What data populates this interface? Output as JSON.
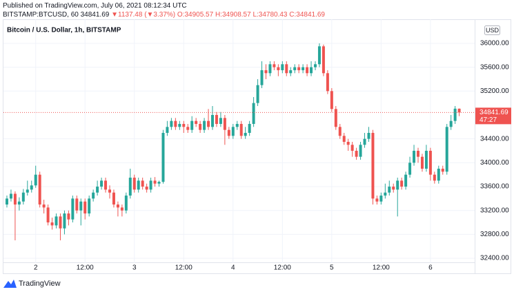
{
  "header": {
    "published": "Published on TradingView.com, July 06, 2021 08:12:34 UTC",
    "symbol": "BITSTAMP:BTCUSD, 60",
    "change": "▼1137.48 (▼3.37%)",
    "ohlc": "O:34905.57 H:34908.57 L:34780.43 C:34841.69"
  },
  "chart_data": {
    "type": "candlestick",
    "title": "Bitcoin / U.S. Dollar, 1h, BITSTAMP",
    "currency": "USD",
    "countdown": "47:27",
    "up_color": "#26a69a",
    "down_color": "#ef5350",
    "grid": true,
    "ylim": [
      32320,
      36380
    ],
    "yticks": [
      {
        "value": 36000,
        "label": "36000.00"
      },
      {
        "value": 35600,
        "label": "35600.00"
      },
      {
        "value": 35200,
        "label": "35200.00"
      },
      {
        "value": 34400,
        "label": "34400.00"
      },
      {
        "value": 34000,
        "label": "34000.00"
      },
      {
        "value": 33600,
        "label": "33600.00"
      },
      {
        "value": 33200,
        "label": "33200.00"
      },
      {
        "value": 32800,
        "label": "32800.00"
      },
      {
        "value": 32400,
        "label": "32400.00"
      }
    ],
    "xticks": [
      {
        "value": 7,
        "label": "2"
      },
      {
        "value": 19,
        "label": "12:00"
      },
      {
        "value": 31,
        "label": "3"
      },
      {
        "value": 43,
        "label": "12:00"
      },
      {
        "value": 55,
        "label": "4"
      },
      {
        "value": 67,
        "label": "12:00"
      },
      {
        "value": 79,
        "label": "5"
      },
      {
        "value": 91,
        "label": "12:00"
      },
      {
        "value": 103,
        "label": "6"
      }
    ],
    "open": [
      33300,
      33400,
      33480,
      33300,
      33350,
      33500,
      33550,
      33620,
      33800,
      33300,
      33250,
      33000,
      32950,
      33100,
      32900,
      33150,
      33050,
      33400,
      33200,
      33350,
      33150,
      33400,
      33500,
      33600,
      33700,
      33550,
      33500,
      33300,
      33250,
      33200,
      33450,
      33750,
      33550,
      33700,
      33600,
      33550,
      33700,
      33650,
      33680,
      34500,
      34600,
      34700,
      34600,
      34650,
      34600,
      34550,
      34700,
      34650,
      34550,
      34700,
      34600,
      34800,
      34650,
      34750,
      34550,
      34450,
      34600,
      34650,
      34450,
      34500,
      34650,
      35000,
      35300,
      35550,
      35500,
      35650,
      35600,
      35550,
      35650,
      35500,
      35550,
      35600,
      35550,
      35600,
      35500,
      35600,
      35650,
      35950,
      35500,
      35200,
      34900,
      34600,
      34450,
      34350,
      34300,
      34200,
      34100,
      34300,
      34400,
      34500,
      33400,
      33350,
      33450,
      33500,
      33600,
      33550,
      33700,
      33600,
      33800,
      34000,
      34200,
      34100,
      33900,
      34200,
      33800,
      33700,
      33900,
      33850,
      34600,
      34700,
      34905.57
    ],
    "high": [
      33450,
      33550,
      33520,
      33420,
      33560,
      33700,
      33700,
      33950,
      33850,
      33380,
      33300,
      33080,
      33150,
      33150,
      33200,
      33200,
      33450,
      33450,
      33400,
      33400,
      33450,
      33550,
      33700,
      33750,
      33750,
      33620,
      33550,
      33350,
      33300,
      33500,
      33900,
      33800,
      33750,
      33750,
      33650,
      33750,
      33760,
      33700,
      34550,
      34700,
      34750,
      34750,
      34700,
      34700,
      34650,
      34780,
      34750,
      34700,
      34750,
      34900,
      34950,
      34850,
      34850,
      34800,
      34600,
      34650,
      34700,
      34700,
      34600,
      34700,
      35100,
      35400,
      35700,
      35650,
      35700,
      35700,
      35650,
      35700,
      35700,
      35600,
      35650,
      35650,
      35650,
      35650,
      35700,
      35700,
      36000,
      35980,
      35550,
      35250,
      34950,
      34650,
      34500,
      34400,
      34350,
      34250,
      34350,
      34500,
      34600,
      34550,
      33450,
      33500,
      33650,
      33700,
      33650,
      33750,
      33750,
      33850,
      34100,
      34300,
      34250,
      34150,
      34300,
      34250,
      33850,
      33950,
      33950,
      34650,
      34800,
      34950,
      34908.57
    ],
    "low": [
      33250,
      33350,
      32700,
      33200,
      33300,
      33450,
      33500,
      33580,
      33250,
      33150,
      32950,
      32880,
      32900,
      32700,
      32800,
      32950,
      33000,
      33150,
      32950,
      33050,
      33100,
      33350,
      33450,
      33550,
      33500,
      33400,
      33250,
      33100,
      33100,
      33150,
      33400,
      33500,
      33500,
      33550,
      33500,
      33500,
      33600,
      33600,
      33650,
      34450,
      34550,
      34550,
      34550,
      34500,
      34500,
      34500,
      34600,
      34500,
      34500,
      34550,
      34550,
      34600,
      34600,
      34300,
      34400,
      34400,
      34550,
      34400,
      34400,
      34450,
      34600,
      34950,
      35250,
      35400,
      35450,
      35550,
      35450,
      35500,
      35450,
      35450,
      35500,
      35500,
      35500,
      35450,
      35450,
      35550,
      35600,
      35450,
      35150,
      34850,
      34550,
      34400,
      34300,
      34200,
      34100,
      34050,
      34050,
      34250,
      34350,
      33300,
      33300,
      33300,
      33400,
      33450,
      33500,
      33100,
      33550,
      33550,
      33750,
      33950,
      34000,
      33850,
      33850,
      33700,
      33650,
      33650,
      33800,
      33800,
      34550,
      34650,
      34780.43
    ],
    "close": [
      33400,
      33480,
      33300,
      33350,
      33500,
      33550,
      33620,
      33800,
      33300,
      33250,
      33000,
      32950,
      33100,
      32900,
      33150,
      33050,
      33400,
      33200,
      33350,
      33150,
      33400,
      33500,
      33600,
      33700,
      33550,
      33500,
      33300,
      33250,
      33200,
      33450,
      33750,
      33550,
      33700,
      33600,
      33550,
      33700,
      33650,
      33680,
      34500,
      34600,
      34700,
      34600,
      34650,
      34600,
      34550,
      34700,
      34650,
      34550,
      34700,
      34600,
      34800,
      34650,
      34750,
      34550,
      34450,
      34600,
      34650,
      34450,
      34500,
      34650,
      35000,
      35300,
      35550,
      35500,
      35650,
      35600,
      35550,
      35650,
      35500,
      35550,
      35600,
      35550,
      35600,
      35500,
      35600,
      35650,
      35950,
      35500,
      35200,
      34900,
      34600,
      34450,
      34350,
      34300,
      34200,
      34100,
      34300,
      34400,
      34500,
      33400,
      33350,
      33450,
      33500,
      33600,
      33550,
      33700,
      33600,
      33800,
      34000,
      34200,
      34100,
      33900,
      34200,
      33800,
      33700,
      33900,
      33850,
      34600,
      34700,
      34905.57,
      34841.69
    ]
  }
}
